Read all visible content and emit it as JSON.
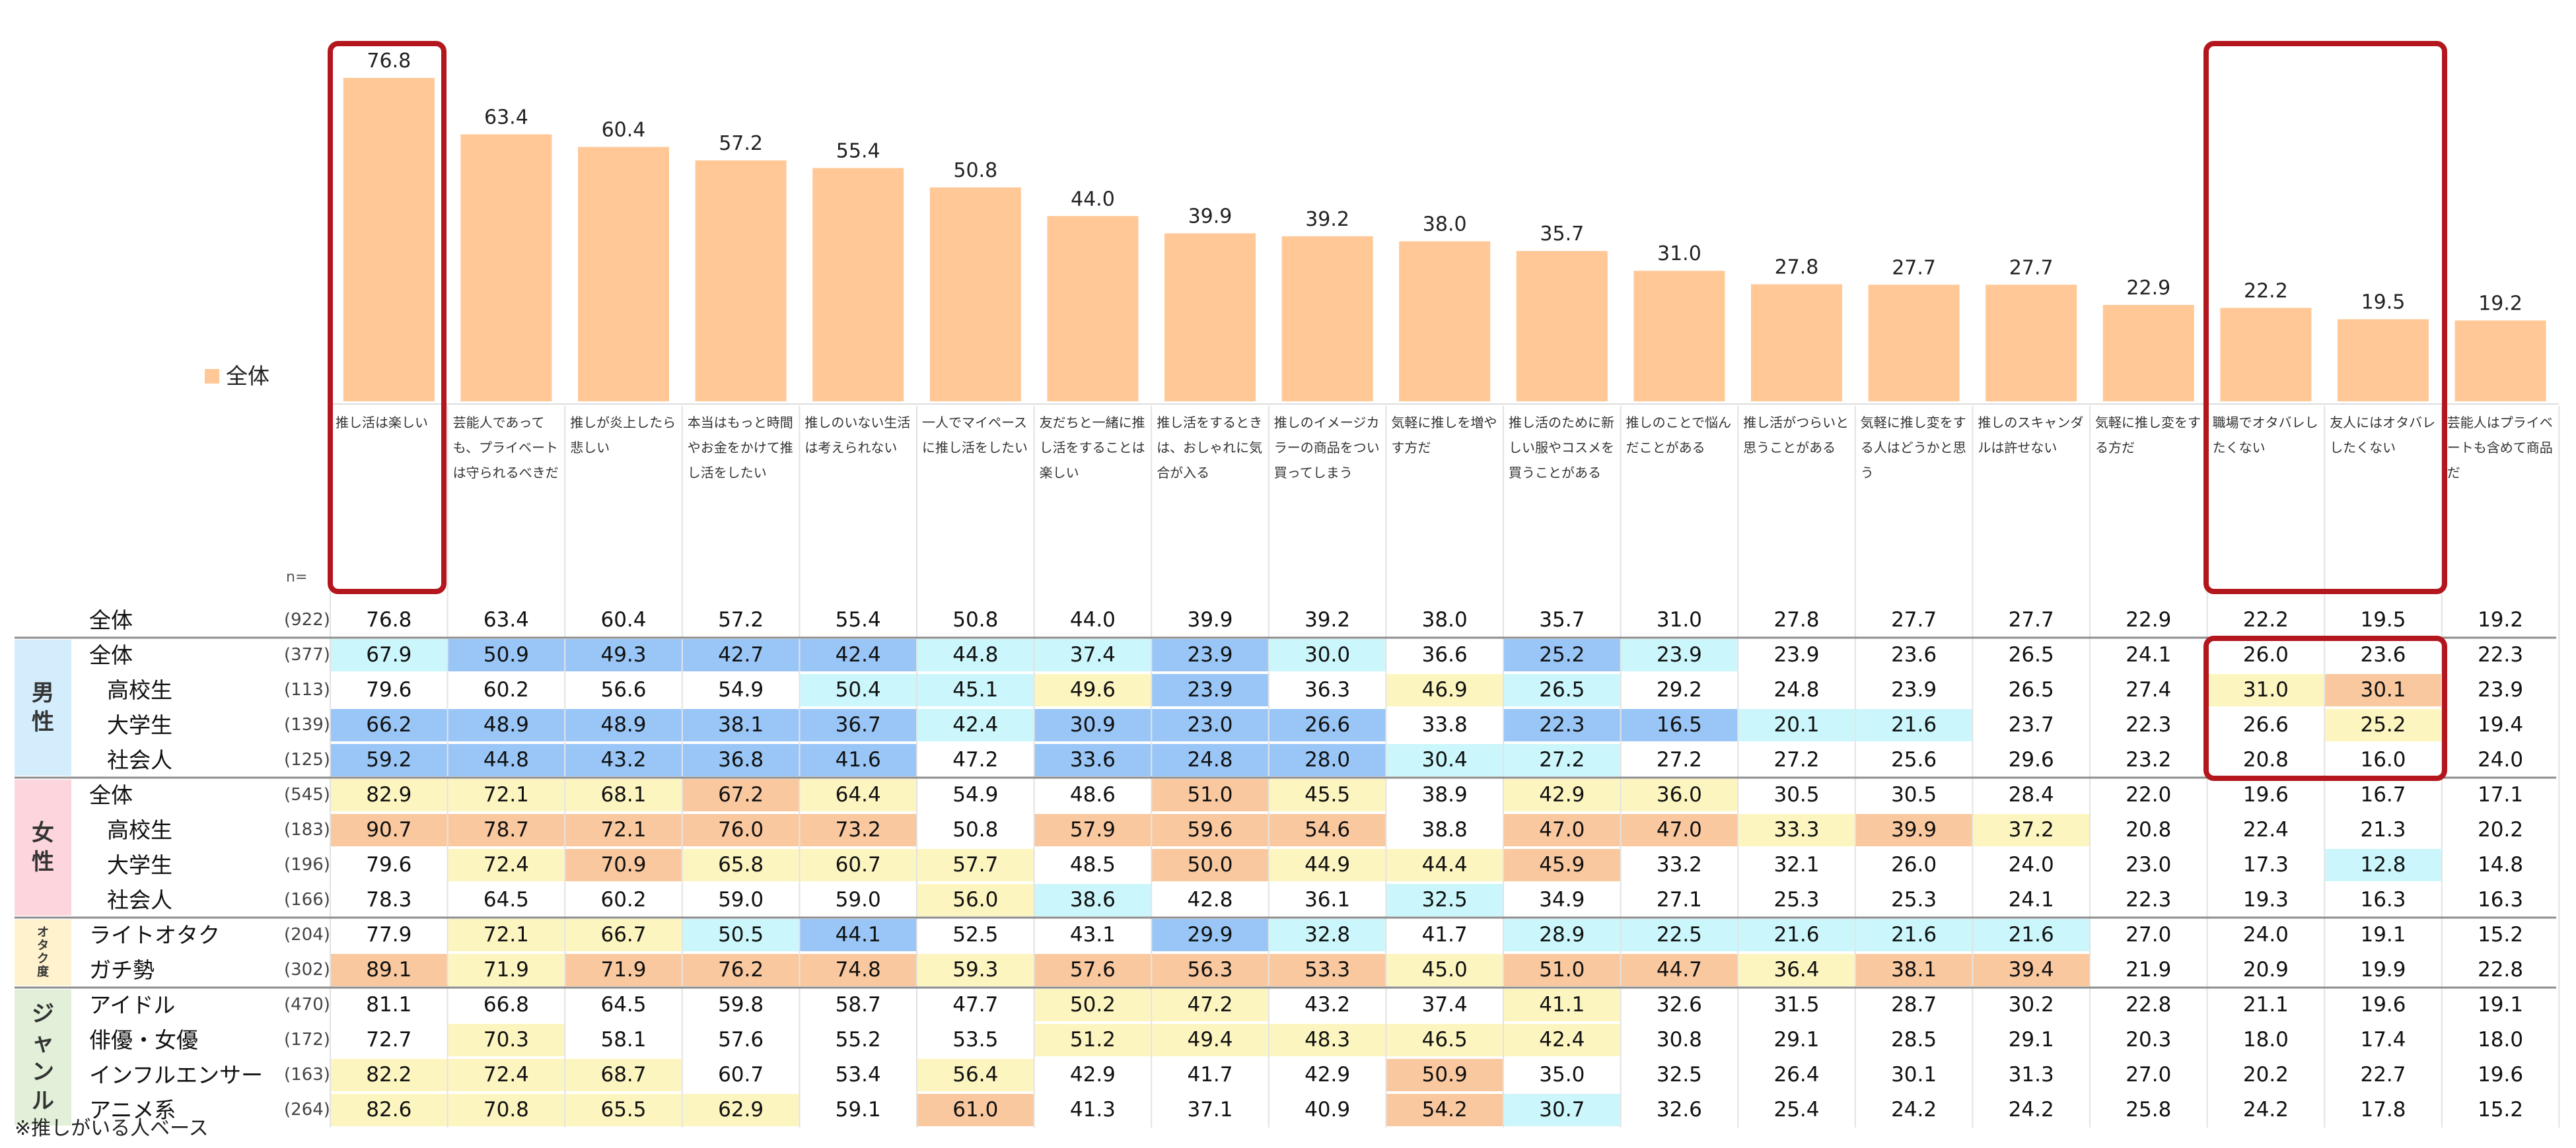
{
  "chart_data": {
    "type": "bar+table",
    "legend": [
      {
        "name": "全体",
        "color": "#ffc896"
      }
    ],
    "n_header": "n=",
    "footnote": "※推しがいる人ベース",
    "categories": [
      "推し活は楽しい",
      "芸能人であっても、プライベートは守られるべきだ",
      "推しが炎上したら悲しい",
      "本当はもっと時間やお金をかけて推し活をしたい",
      "推しのいない生活は考えられない",
      "一人でマイペースに推し活をしたい",
      "友だちと一緒に推し活をすることは楽しい",
      "推し活をするときは、おしゃれに気合が入る",
      "推しのイメージカラーの商品をつい買ってしまう",
      "気軽に推しを増やす方だ",
      "推し活のために新しい服やコスメを買うことがある",
      "推しのことで悩んだことがある",
      "推し活がつらいと思うことがある",
      "気軽に推し変をする人はどうかと思う",
      "推しのスキャンダルは許せない",
      "気軽に推し変をする方だ",
      "職場でオタバレしたくない",
      "友人にはオタバレしたくない",
      "芸能人はプライベートも含めて商品だ"
    ],
    "bar_values": [
      76.8,
      63.4,
      60.4,
      57.2,
      55.4,
      50.8,
      44.0,
      39.9,
      39.2,
      38.0,
      35.7,
      31.0,
      27.8,
      27.7,
      27.7,
      22.9,
      22.2,
      19.5,
      19.2
    ],
    "bar_value_labels": [
      "76.8",
      "63.4",
      "60.4",
      "57.2",
      "55.4",
      "50.8",
      "44.0",
      "39.9",
      "39.2",
      "38.0",
      "35.7",
      "31.0",
      "27.8",
      "27.7",
      "27.7",
      "22.9",
      "22.2",
      "19.5",
      "19.2"
    ],
    "groups": [
      {
        "label": "男性",
        "color": "#d4edfc"
      },
      {
        "label": "女性",
        "color": "#fcd6dc"
      },
      {
        "label": "オタク度",
        "color": "#fff2cc"
      },
      {
        "label": "ジャンル",
        "color": "#e2f0d9"
      }
    ],
    "rows": [
      {
        "label": "全体",
        "n": "(922)",
        "values": [
          "76.8",
          "63.4",
          "60.4",
          "57.2",
          "55.4",
          "50.8",
          "44.0",
          "39.9",
          "39.2",
          "38.0",
          "35.7",
          "31.0",
          "27.8",
          "27.7",
          "27.7",
          "22.9",
          "22.2",
          "19.5",
          "19.2"
        ]
      },
      {
        "label": "全体",
        "n": "(377)",
        "values": [
          "67.9",
          "50.9",
          "49.3",
          "42.7",
          "42.4",
          "44.8",
          "37.4",
          "23.9",
          "30.0",
          "36.6",
          "25.2",
          "23.9",
          "23.9",
          "23.6",
          "26.5",
          "24.1",
          "26.0",
          "23.6",
          "22.3"
        ]
      },
      {
        "label": "高校生",
        "n": "(113)",
        "values": [
          "79.6",
          "60.2",
          "56.6",
          "54.9",
          "50.4",
          "45.1",
          "49.6",
          "23.9",
          "36.3",
          "46.9",
          "26.5",
          "29.2",
          "24.8",
          "23.9",
          "26.5",
          "27.4",
          "31.0",
          "30.1",
          "23.9"
        ]
      },
      {
        "label": "大学生",
        "n": "(139)",
        "values": [
          "66.2",
          "48.9",
          "48.9",
          "38.1",
          "36.7",
          "42.4",
          "30.9",
          "23.0",
          "26.6",
          "33.8",
          "22.3",
          "16.5",
          "20.1",
          "21.6",
          "23.7",
          "22.3",
          "26.6",
          "25.2",
          "19.4"
        ]
      },
      {
        "label": "社会人",
        "n": "(125)",
        "values": [
          "59.2",
          "44.8",
          "43.2",
          "36.8",
          "41.6",
          "47.2",
          "33.6",
          "24.8",
          "28.0",
          "30.4",
          "27.2",
          "27.2",
          "27.2",
          "25.6",
          "29.6",
          "23.2",
          "20.8",
          "16.0",
          "24.0"
        ]
      },
      {
        "label": "全体",
        "n": "(545)",
        "values": [
          "82.9",
          "72.1",
          "68.1",
          "67.2",
          "64.4",
          "54.9",
          "48.6",
          "51.0",
          "45.5",
          "38.9",
          "42.9",
          "36.0",
          "30.5",
          "30.5",
          "28.4",
          "22.0",
          "19.6",
          "16.7",
          "17.1"
        ]
      },
      {
        "label": "高校生",
        "n": "(183)",
        "values": [
          "90.7",
          "78.7",
          "72.1",
          "76.0",
          "73.2",
          "50.8",
          "57.9",
          "59.6",
          "54.6",
          "38.8",
          "47.0",
          "47.0",
          "33.3",
          "39.9",
          "37.2",
          "20.8",
          "22.4",
          "21.3",
          "20.2"
        ]
      },
      {
        "label": "大学生",
        "n": "(196)",
        "values": [
          "79.6",
          "72.4",
          "70.9",
          "65.8",
          "60.7",
          "57.7",
          "48.5",
          "50.0",
          "44.9",
          "44.4",
          "45.9",
          "33.2",
          "32.1",
          "26.0",
          "24.0",
          "23.0",
          "17.3",
          "12.8",
          "14.8"
        ]
      },
      {
        "label": "社会人",
        "n": "(166)",
        "values": [
          "78.3",
          "64.5",
          "60.2",
          "59.0",
          "59.0",
          "56.0",
          "38.6",
          "42.8",
          "36.1",
          "32.5",
          "34.9",
          "27.1",
          "25.3",
          "25.3",
          "24.1",
          "22.3",
          "19.3",
          "16.3",
          "16.3"
        ]
      },
      {
        "label": "ライトオタク",
        "n": "(204)",
        "values": [
          "77.9",
          "72.1",
          "66.7",
          "50.5",
          "44.1",
          "52.5",
          "43.1",
          "29.9",
          "32.8",
          "41.7",
          "28.9",
          "22.5",
          "21.6",
          "21.6",
          "21.6",
          "27.0",
          "24.0",
          "19.1",
          "15.2"
        ]
      },
      {
        "label": "ガチ勢",
        "n": "(302)",
        "values": [
          "89.1",
          "71.9",
          "71.9",
          "76.2",
          "74.8",
          "59.3",
          "57.6",
          "56.3",
          "53.3",
          "45.0",
          "51.0",
          "44.7",
          "36.4",
          "38.1",
          "39.4",
          "21.9",
          "20.9",
          "19.9",
          "22.8"
        ]
      },
      {
        "label": "アイドル",
        "n": "(470)",
        "values": [
          "81.1",
          "66.8",
          "64.5",
          "59.8",
          "58.7",
          "47.7",
          "50.2",
          "47.2",
          "43.2",
          "37.4",
          "41.1",
          "32.6",
          "31.5",
          "28.7",
          "30.2",
          "22.8",
          "21.1",
          "19.6",
          "19.1"
        ]
      },
      {
        "label": "俳優・女優",
        "n": "(172)",
        "values": [
          "72.7",
          "70.3",
          "58.1",
          "57.6",
          "55.2",
          "53.5",
          "51.2",
          "49.4",
          "48.3",
          "46.5",
          "42.4",
          "30.8",
          "29.1",
          "28.5",
          "29.1",
          "20.3",
          "18.0",
          "17.4",
          "18.0"
        ]
      },
      {
        "label": "インフルエンサー",
        "n": "(163)",
        "values": [
          "82.2",
          "72.4",
          "68.7",
          "60.7",
          "53.4",
          "56.4",
          "42.9",
          "41.7",
          "42.9",
          "50.9",
          "35.0",
          "32.5",
          "26.4",
          "30.1",
          "31.3",
          "27.0",
          "20.2",
          "22.7",
          "19.6"
        ]
      },
      {
        "label": "アニメ系",
        "n": "(264)",
        "values": [
          "82.6",
          "70.8",
          "65.5",
          "62.9",
          "59.1",
          "61.0",
          "41.3",
          "37.1",
          "40.9",
          "54.2",
          "30.7",
          "32.6",
          "25.4",
          "24.2",
          "24.2",
          "25.8",
          "24.2",
          "17.8",
          "15.2"
        ]
      }
    ],
    "cell_colors": {
      "much_higher": "#fac89f",
      "higher": "#fdf5c0",
      "lower": "#cbf6fb",
      "much_lower": "#99c6f7"
    }
  }
}
